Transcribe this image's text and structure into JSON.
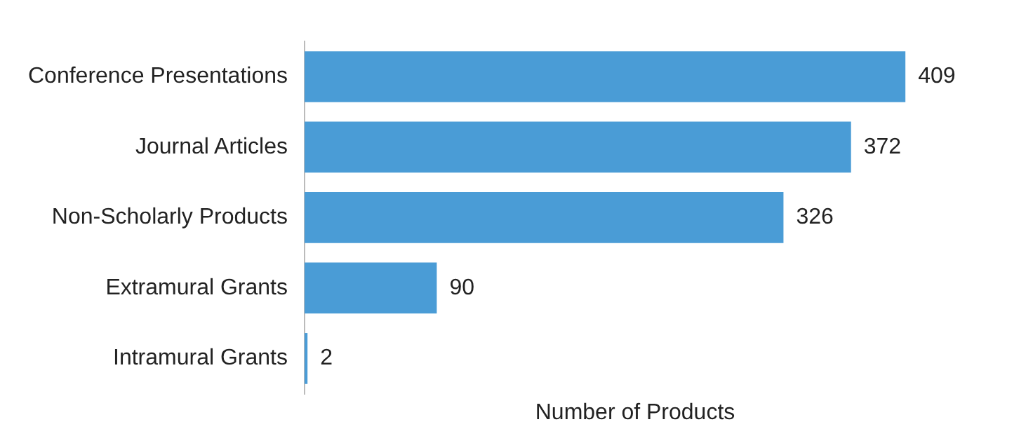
{
  "chart_data": {
    "type": "bar",
    "orientation": "horizontal",
    "categories": [
      "Conference Presentations",
      "Journal Articles",
      "Non-Scholarly Products",
      "Extramural Grants",
      "Intramural Grants"
    ],
    "values": [
      409,
      372,
      326,
      90,
      2
    ],
    "color": "#4a9cd6",
    "xlabel": "Number of Products",
    "data_labels": true,
    "grid": false,
    "legend": false,
    "tick_labels": "y"
  }
}
